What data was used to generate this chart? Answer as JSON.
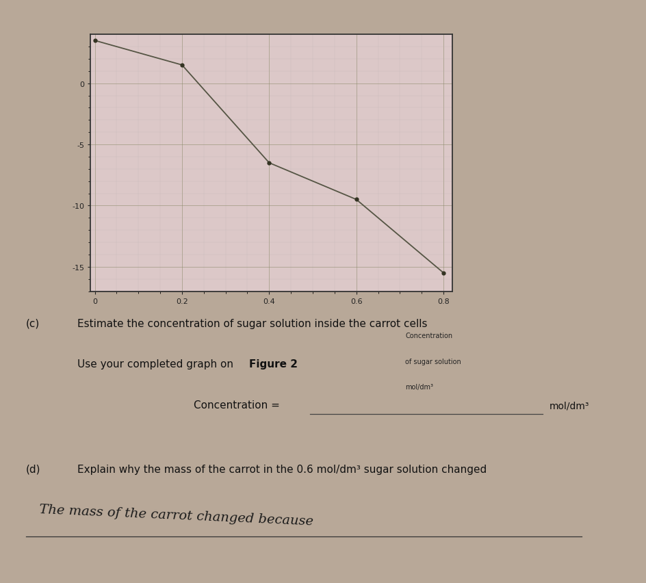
{
  "bg_color": "#b8a898",
  "paper_color": "#ddd0c0",
  "graph_bg": "#dcc8c8",
  "graph_border_color": "#333333",
  "grid_major_color": "#888866",
  "grid_minor_color": "#aaaaaa",
  "line_color": "#555544",
  "point_color": "#333322",
  "x_ticks": [
    0.0,
    0.2,
    0.4,
    0.6,
    0.8
  ],
  "y_ticks": [
    0,
    -5,
    -10,
    -15
  ],
  "xlabel_line1": "Concentration",
  "xlabel_line2": "of sugar solution",
  "xlabel_line3": "mol/dm³",
  "x_data": [
    0.0,
    0.2,
    0.4,
    0.6,
    0.8
  ],
  "y_data": [
    3.5,
    1.5,
    -6.5,
    -9.5,
    -15.5
  ],
  "question_c_label": "(c)",
  "question_c_text": "Estimate the concentration of sugar solution inside the carrot cells",
  "question_c_sub1": "Use your completed graph on ",
  "question_c_sub2": "Figure 2",
  "conc_label": "Concentration = ",
  "conc_unit": "mol/dm³",
  "question_d_label": "(d)",
  "question_d_text": "Explain why the mass of the carrot in the 0.6 mol/dm³ sugar solution changed",
  "answer_d_handwritten": "The mass of the carrot changed because",
  "answer_d_line2": ""
}
